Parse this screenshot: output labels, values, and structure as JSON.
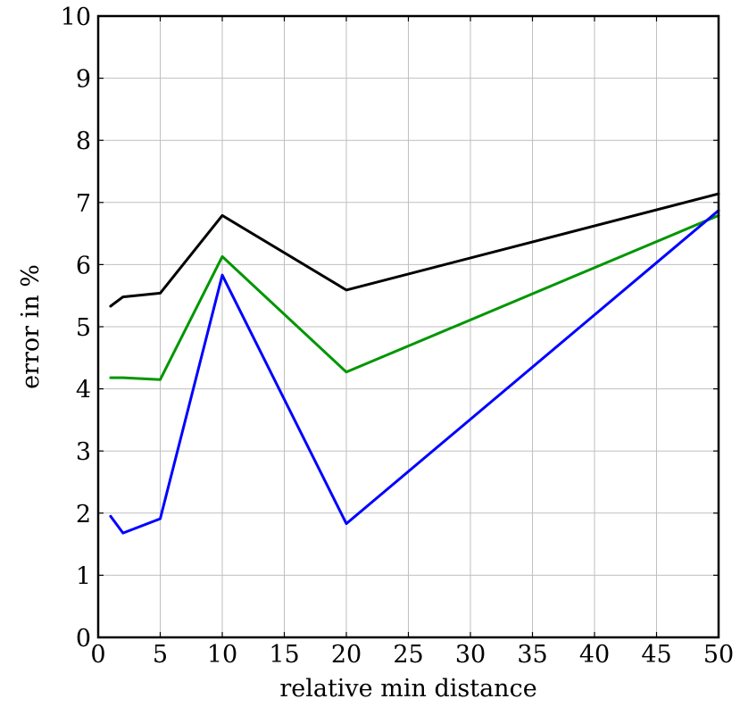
{
  "chart_data": {
    "type": "line",
    "title": "",
    "xlabel": "relative min distance",
    "ylabel": "error in %",
    "xlim": [
      0,
      50
    ],
    "ylim": [
      0,
      10
    ],
    "x_ticks": [
      0,
      5,
      10,
      15,
      20,
      25,
      30,
      35,
      40,
      45,
      50
    ],
    "y_ticks": [
      0,
      1,
      2,
      3,
      4,
      5,
      6,
      7,
      8,
      9,
      10
    ],
    "grid": true,
    "legend": "none",
    "x": [
      1,
      2,
      5,
      10,
      20,
      50
    ],
    "series": [
      {
        "color": "#000000",
        "values": [
          5.33,
          5.48,
          5.54,
          6.79,
          5.59,
          7.14
        ]
      },
      {
        "color": "#009600",
        "values": [
          4.18,
          4.18,
          4.15,
          6.13,
          4.27,
          6.79
        ]
      },
      {
        "color": "#0000ff",
        "values": [
          1.95,
          1.68,
          1.91,
          5.83,
          1.83,
          6.87
        ]
      }
    ]
  }
}
